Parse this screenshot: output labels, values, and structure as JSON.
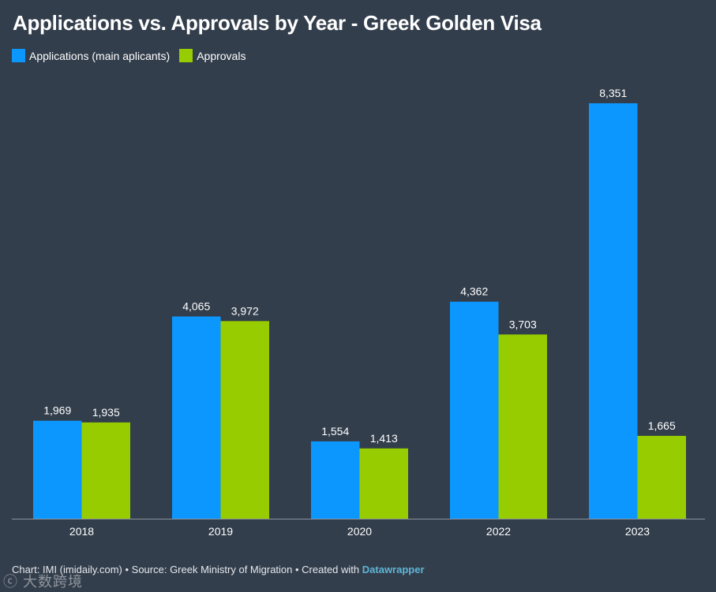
{
  "chart_data": {
    "type": "bar",
    "title": "Applications vs. Approvals by Year - Greek Golden Visa",
    "categories": [
      "2018",
      "2019",
      "2020",
      "2022",
      "2023"
    ],
    "series": [
      {
        "name": "Applications (main aplicants)",
        "color": "#0c97ff",
        "values": [
          1969,
          4065,
          1554,
          4362,
          8351
        ],
        "labels": [
          "1,969",
          "4,065",
          "1,554",
          "4,362",
          "8,351"
        ]
      },
      {
        "name": "Approvals",
        "color": "#97cd00",
        "values": [
          1935,
          3972,
          1413,
          3703,
          1665
        ],
        "labels": [
          "1,935",
          "3,972",
          "1,413",
          "3,703",
          "1,665"
        ]
      }
    ],
    "xlabel": "",
    "ylabel": "",
    "ylim": [
      0,
      8351
    ],
    "grid": false,
    "legend": "top-left"
  },
  "footer": {
    "prefix": "Chart: IMI (imidaily.com) • Source: Greek Ministry of Migration • Created with ",
    "link": "Datawrapper"
  },
  "watermark": {
    "text": "大数跨境"
  },
  "colors": {
    "background": "#333e4c",
    "axis": "#8b949e"
  }
}
